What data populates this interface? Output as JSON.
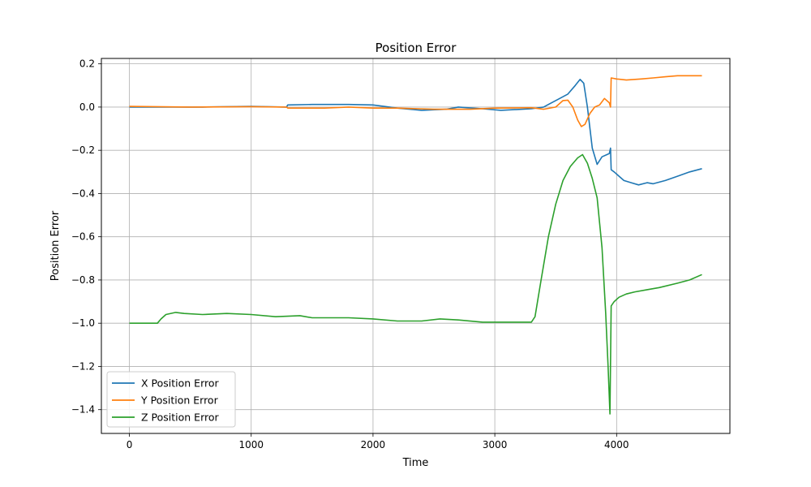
{
  "chart_data": {
    "type": "line",
    "title": "Position Error",
    "xlabel": "Time",
    "ylabel": "Position Error",
    "xlim": [
      -230,
      4930
    ],
    "ylim": [
      -1.51,
      0.225
    ],
    "xticks": [
      0,
      1000,
      2000,
      3000,
      4000
    ],
    "xtick_labels": [
      "0",
      "1000",
      "2000",
      "3000",
      "4000"
    ],
    "yticks": [
      0.2,
      0.0,
      -0.2,
      -0.4,
      -0.6,
      -0.8,
      -1.0,
      -1.2,
      -1.4
    ],
    "ytick_labels": [
      "0.2",
      "0.0",
      "−0.2",
      "−0.4",
      "−0.6",
      "−0.8",
      "−1.0",
      "−1.2",
      "−1.4"
    ],
    "grid": true,
    "legend_position": "lower-left",
    "series": [
      {
        "name": "X Position Error",
        "color": "#1f77b4",
        "points": [
          [
            0,
            0.0
          ],
          [
            600,
            0.0
          ],
          [
            1000,
            0.003
          ],
          [
            1290,
            0.0
          ],
          [
            1300,
            0.01
          ],
          [
            1500,
            0.012
          ],
          [
            1800,
            0.012
          ],
          [
            2000,
            0.01
          ],
          [
            2200,
            -0.005
          ],
          [
            2400,
            -0.015
          ],
          [
            2600,
            -0.01
          ],
          [
            2700,
            0.0
          ],
          [
            2900,
            -0.008
          ],
          [
            3050,
            -0.015
          ],
          [
            3300,
            -0.008
          ],
          [
            3400,
            0.0
          ],
          [
            3500,
            0.03
          ],
          [
            3600,
            0.06
          ],
          [
            3660,
            0.1
          ],
          [
            3700,
            0.128
          ],
          [
            3730,
            0.11
          ],
          [
            3760,
            0.0
          ],
          [
            3800,
            -0.19
          ],
          [
            3840,
            -0.265
          ],
          [
            3880,
            -0.23
          ],
          [
            3920,
            -0.22
          ],
          [
            3940,
            -0.215
          ],
          [
            3950,
            -0.19
          ],
          [
            3955,
            -0.29
          ],
          [
            3980,
            -0.3
          ],
          [
            4020,
            -0.32
          ],
          [
            4060,
            -0.34
          ],
          [
            4120,
            -0.35
          ],
          [
            4180,
            -0.36
          ],
          [
            4250,
            -0.35
          ],
          [
            4300,
            -0.355
          ],
          [
            4400,
            -0.34
          ],
          [
            4500,
            -0.32
          ],
          [
            4600,
            -0.3
          ],
          [
            4700,
            -0.285
          ]
        ]
      },
      {
        "name": "Y Position Error",
        "color": "#ff7f0e",
        "points": [
          [
            0,
            0.003
          ],
          [
            500,
            0.0
          ],
          [
            1000,
            0.002
          ],
          [
            1290,
            0.0
          ],
          [
            1300,
            -0.005
          ],
          [
            1600,
            -0.005
          ],
          [
            1800,
            0.0
          ],
          [
            2000,
            -0.005
          ],
          [
            2200,
            -0.005
          ],
          [
            2500,
            -0.01
          ],
          [
            2800,
            -0.01
          ],
          [
            3000,
            -0.005
          ],
          [
            3300,
            -0.003
          ],
          [
            3400,
            -0.01
          ],
          [
            3500,
            0.0
          ],
          [
            3560,
            0.03
          ],
          [
            3600,
            0.032
          ],
          [
            3640,
            0.0
          ],
          [
            3680,
            -0.06
          ],
          [
            3710,
            -0.09
          ],
          [
            3740,
            -0.08
          ],
          [
            3780,
            -0.03
          ],
          [
            3820,
            0.0
          ],
          [
            3860,
            0.01
          ],
          [
            3900,
            0.04
          ],
          [
            3940,
            0.02
          ],
          [
            3950,
            0.0
          ],
          [
            3955,
            0.135
          ],
          [
            4000,
            0.13
          ],
          [
            4080,
            0.125
          ],
          [
            4200,
            0.13
          ],
          [
            4300,
            0.135
          ],
          [
            4400,
            0.14
          ],
          [
            4500,
            0.145
          ],
          [
            4600,
            0.145
          ],
          [
            4700,
            0.145
          ]
        ]
      },
      {
        "name": "Z Position Error",
        "color": "#2ca02c",
        "points": [
          [
            0,
            -1.0
          ],
          [
            200,
            -1.0
          ],
          [
            230,
            -1.0
          ],
          [
            260,
            -0.98
          ],
          [
            300,
            -0.96
          ],
          [
            380,
            -0.95
          ],
          [
            450,
            -0.955
          ],
          [
            600,
            -0.96
          ],
          [
            800,
            -0.955
          ],
          [
            1000,
            -0.96
          ],
          [
            1200,
            -0.97
          ],
          [
            1400,
            -0.965
          ],
          [
            1500,
            -0.975
          ],
          [
            1800,
            -0.975
          ],
          [
            2000,
            -0.98
          ],
          [
            2200,
            -0.99
          ],
          [
            2400,
            -0.99
          ],
          [
            2550,
            -0.98
          ],
          [
            2700,
            -0.985
          ],
          [
            2900,
            -0.995
          ],
          [
            3100,
            -0.995
          ],
          [
            3300,
            -0.995
          ],
          [
            3330,
            -0.97
          ],
          [
            3380,
            -0.8
          ],
          [
            3440,
            -0.6
          ],
          [
            3500,
            -0.45
          ],
          [
            3560,
            -0.34
          ],
          [
            3620,
            -0.275
          ],
          [
            3680,
            -0.235
          ],
          [
            3720,
            -0.22
          ],
          [
            3760,
            -0.26
          ],
          [
            3800,
            -0.33
          ],
          [
            3840,
            -0.42
          ],
          [
            3880,
            -0.65
          ],
          [
            3910,
            -0.95
          ],
          [
            3930,
            -1.2
          ],
          [
            3945,
            -1.42
          ],
          [
            3955,
            -0.92
          ],
          [
            3980,
            -0.9
          ],
          [
            4020,
            -0.88
          ],
          [
            4080,
            -0.865
          ],
          [
            4150,
            -0.855
          ],
          [
            4250,
            -0.845
          ],
          [
            4350,
            -0.835
          ],
          [
            4500,
            -0.815
          ],
          [
            4600,
            -0.8
          ],
          [
            4700,
            -0.775
          ]
        ]
      }
    ]
  }
}
